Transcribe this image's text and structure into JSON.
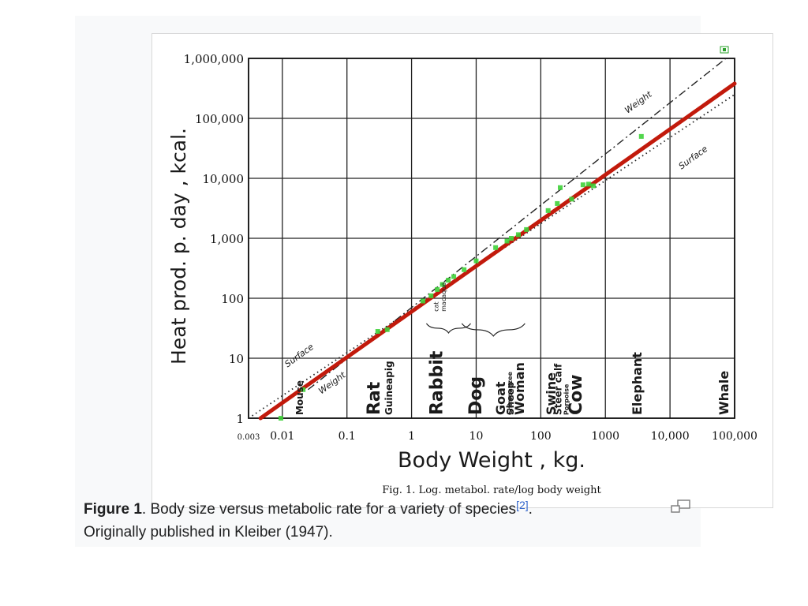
{
  "caption": {
    "bold": "Figure 1",
    "text": ". Body size versus metabolic rate for a variety of species",
    "ref": "[2]",
    "after_ref": ".",
    "line2": "Originally published in Kleiber (1947)."
  },
  "icons": {
    "magnify": "magnify-icon",
    "expand_marker": "expand-marker-icon"
  },
  "colors": {
    "fit_line": "#c21a0c",
    "points": "#3fd13a",
    "grid": "#222222",
    "ref": "#3366cc"
  },
  "chart_data": {
    "type": "scatter",
    "title": "Fig. 1.  Log.  metabol. rate/log body weight",
    "xlabel": "Body Weight , kg.",
    "ylabel": "Heat prod. p. day , kcal.",
    "xscale": "log",
    "yscale": "log",
    "xlim": [
      0.003,
      100000
    ],
    "ylim": [
      1,
      1000000
    ],
    "grid": true,
    "x_ticks": [
      {
        "value": 0.003,
        "label": "0.003"
      },
      {
        "value": 0.01,
        "label": "0.01"
      },
      {
        "value": 0.1,
        "label": "0.1"
      },
      {
        "value": 1,
        "label": "1"
      },
      {
        "value": 10,
        "label": "10"
      },
      {
        "value": 100,
        "label": "100"
      },
      {
        "value": 1000,
        "label": "1000"
      },
      {
        "value": 10000,
        "label": "10,000"
      },
      {
        "value": 100000,
        "label": "100,000"
      }
    ],
    "y_ticks": [
      {
        "value": 1,
        "label": "1"
      },
      {
        "value": 10,
        "label": "10"
      },
      {
        "value": 100,
        "label": "100"
      },
      {
        "value": 1000,
        "label": "1,000"
      },
      {
        "value": 10000,
        "label": "10,000"
      },
      {
        "value": 100000,
        "label": "100,000"
      },
      {
        "value": 1000000,
        "label": "1,000,000"
      }
    ],
    "lines": [
      {
        "name": "Weight",
        "style": "dashdot",
        "color": "#222222",
        "points": [
          [
            0.025,
            3
          ],
          [
            100000,
            1300000
          ]
        ]
      },
      {
        "name": "Surface",
        "style": "dotted",
        "color": "#222222",
        "points": [
          [
            0.003,
            1
          ],
          [
            100000,
            250000
          ]
        ]
      },
      {
        "name": "fit",
        "style": "solid",
        "color": "#c21a0c",
        "points": [
          [
            0.0046,
            1
          ],
          [
            100000,
            380000
          ]
        ]
      }
    ],
    "line_labels": [
      {
        "text": "Weight",
        "x": 2200,
        "y": 120000
      },
      {
        "text": "Surface",
        "x": 15000,
        "y": 14000
      },
      {
        "text": "Surface",
        "x": 0.012,
        "y": 7
      },
      {
        "text": "Weight",
        "x": 0.04,
        "y": 2.5
      }
    ],
    "points": [
      {
        "x": 0.0095,
        "y": 1
      },
      {
        "x": 0.021,
        "y": 3
      },
      {
        "x": 0.3,
        "y": 28
      },
      {
        "x": 0.42,
        "y": 30
      },
      {
        "x": 1.5,
        "y": 90
      },
      {
        "x": 2.0,
        "y": 110
      },
      {
        "x": 2.5,
        "y": 140
      },
      {
        "x": 3.0,
        "y": 170
      },
      {
        "x": 3.7,
        "y": 200
      },
      {
        "x": 4.5,
        "y": 230
      },
      {
        "x": 6.5,
        "y": 300
      },
      {
        "x": 10,
        "y": 420
      },
      {
        "x": 20,
        "y": 700
      },
      {
        "x": 30,
        "y": 900
      },
      {
        "x": 35,
        "y": 1000
      },
      {
        "x": 45,
        "y": 1150
      },
      {
        "x": 60,
        "y": 1400
      },
      {
        "x": 130,
        "y": 2900
      },
      {
        "x": 180,
        "y": 3800
      },
      {
        "x": 200,
        "y": 7000
      },
      {
        "x": 300,
        "y": 4500
      },
      {
        "x": 450,
        "y": 7800
      },
      {
        "x": 550,
        "y": 8000
      },
      {
        "x": 650,
        "y": 7500
      },
      {
        "x": 3600,
        "y": 50000
      }
    ],
    "animal_labels": [
      {
        "text": "Mouse",
        "x": 0.021,
        "size": "small"
      },
      {
        "text": "Rat",
        "x": 0.32,
        "size": "large"
      },
      {
        "text": "Guineapig",
        "x": 0.5,
        "size": "small"
      },
      {
        "text": "Rabbit",
        "x": 3.0,
        "size": "large"
      },
      {
        "text": "Dog",
        "x": 12,
        "size": "large"
      },
      {
        "text": "Goat",
        "x": 28,
        "size": "medium"
      },
      {
        "text": "Sheep",
        "x": 38,
        "size": "small"
      },
      {
        "text": "Woman",
        "x": 55,
        "size": "medium"
      },
      {
        "text": "Chimpanzee",
        "x": 36,
        "size": "tiny"
      },
      {
        "text": "Swine",
        "x": 170,
        "size": "medium"
      },
      {
        "text": "Steer calf",
        "x": 210,
        "size": "small"
      },
      {
        "text": "Porpoise",
        "x": 270,
        "size": "tiny"
      },
      {
        "text": "Cow",
        "x": 430,
        "size": "large"
      },
      {
        "text": "Elephant",
        "x": 3600,
        "size": "medium"
      },
      {
        "text": "Whale",
        "x": 80000,
        "size": "medium"
      }
    ],
    "brace_labels": [
      {
        "text": "cat",
        "x": 2.6
      },
      {
        "text": "macaque",
        "x": 3.4
      }
    ]
  }
}
